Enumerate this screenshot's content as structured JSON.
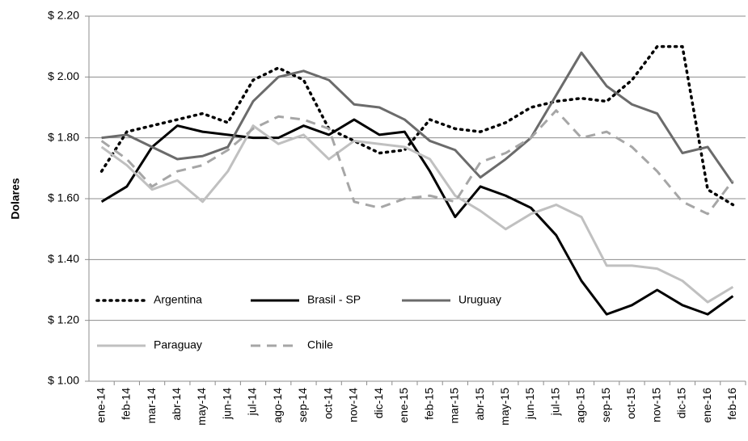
{
  "chart_data": {
    "type": "line",
    "y_axis_label": "Dolares",
    "categories": [
      "ene-14",
      "feb-14",
      "mar-14",
      "abr-14",
      "may-14",
      "jun-14",
      "jul-14",
      "ago-14",
      "sep-14",
      "oct-14",
      "nov-14",
      "dic-14",
      "ene-15",
      "feb-15",
      "mar-15",
      "abr-15",
      "may-15",
      "jun-15",
      "jul-15",
      "ago-15",
      "sep-15",
      "oct-15",
      "nov-15",
      "dic-15",
      "ene-16",
      "feb-16"
    ],
    "series": [
      {
        "name": "Argentina",
        "color": "#000000",
        "dash": "dot",
        "values": [
          1.69,
          1.82,
          1.84,
          1.86,
          1.88,
          1.85,
          1.99,
          2.03,
          1.99,
          1.83,
          1.79,
          1.75,
          1.76,
          1.86,
          1.83,
          1.82,
          1.85,
          1.9,
          1.92,
          1.93,
          1.92,
          1.99,
          2.1,
          2.1,
          1.63,
          1.58
        ]
      },
      {
        "name": "Brasil - SP",
        "color": "#000000",
        "dash": "solid",
        "values": [
          1.59,
          1.64,
          1.77,
          1.84,
          1.82,
          1.81,
          1.8,
          1.8,
          1.84,
          1.81,
          1.86,
          1.81,
          1.82,
          1.69,
          1.54,
          1.64,
          1.61,
          1.57,
          1.48,
          1.33,
          1.22,
          1.25,
          1.3,
          1.25,
          1.22,
          1.28
        ]
      },
      {
        "name": "Uruguay",
        "color": "#6b6b6b",
        "dash": "solid",
        "values": [
          1.8,
          1.81,
          1.77,
          1.73,
          1.74,
          1.77,
          1.92,
          2.0,
          2.02,
          1.99,
          1.91,
          1.9,
          1.86,
          1.79,
          1.76,
          1.67,
          1.73,
          1.8,
          1.94,
          2.08,
          1.97,
          1.91,
          1.88,
          1.75,
          1.77,
          1.65
        ]
      },
      {
        "name": "Paraguay",
        "color": "#c0c0c0",
        "dash": "solid",
        "values": [
          1.77,
          1.71,
          1.63,
          1.66,
          1.59,
          1.69,
          1.84,
          1.78,
          1.81,
          1.73,
          1.79,
          1.78,
          1.77,
          1.73,
          1.61,
          1.56,
          1.5,
          1.55,
          1.58,
          1.54,
          1.38,
          1.38,
          1.37,
          1.33,
          1.26,
          1.31
        ]
      },
      {
        "name": "Chile",
        "color": "#a6a6a6",
        "dash": "dash",
        "values": [
          1.79,
          1.73,
          1.64,
          1.69,
          1.71,
          1.76,
          1.83,
          1.87,
          1.86,
          1.83,
          1.59,
          1.57,
          1.6,
          1.61,
          1.59,
          1.72,
          1.75,
          1.8,
          1.89,
          1.8,
          1.82,
          1.77,
          1.69,
          1.59,
          1.55,
          1.66
        ]
      }
    ],
    "ylim": [
      1.0,
      2.2
    ],
    "yticks": [
      {
        "value": 1.0,
        "label": "$ 1.00"
      },
      {
        "value": 1.2,
        "label": "$ 1.20"
      },
      {
        "value": 1.4,
        "label": "$ 1.40"
      },
      {
        "value": 1.6,
        "label": "$ 1.60"
      },
      {
        "value": 1.8,
        "label": "$ 1.80"
      },
      {
        "value": 2.0,
        "label": "$ 2.00"
      },
      {
        "value": 2.2,
        "label": "$ 2.20"
      }
    ],
    "grid": true,
    "legend": "lower-left"
  }
}
